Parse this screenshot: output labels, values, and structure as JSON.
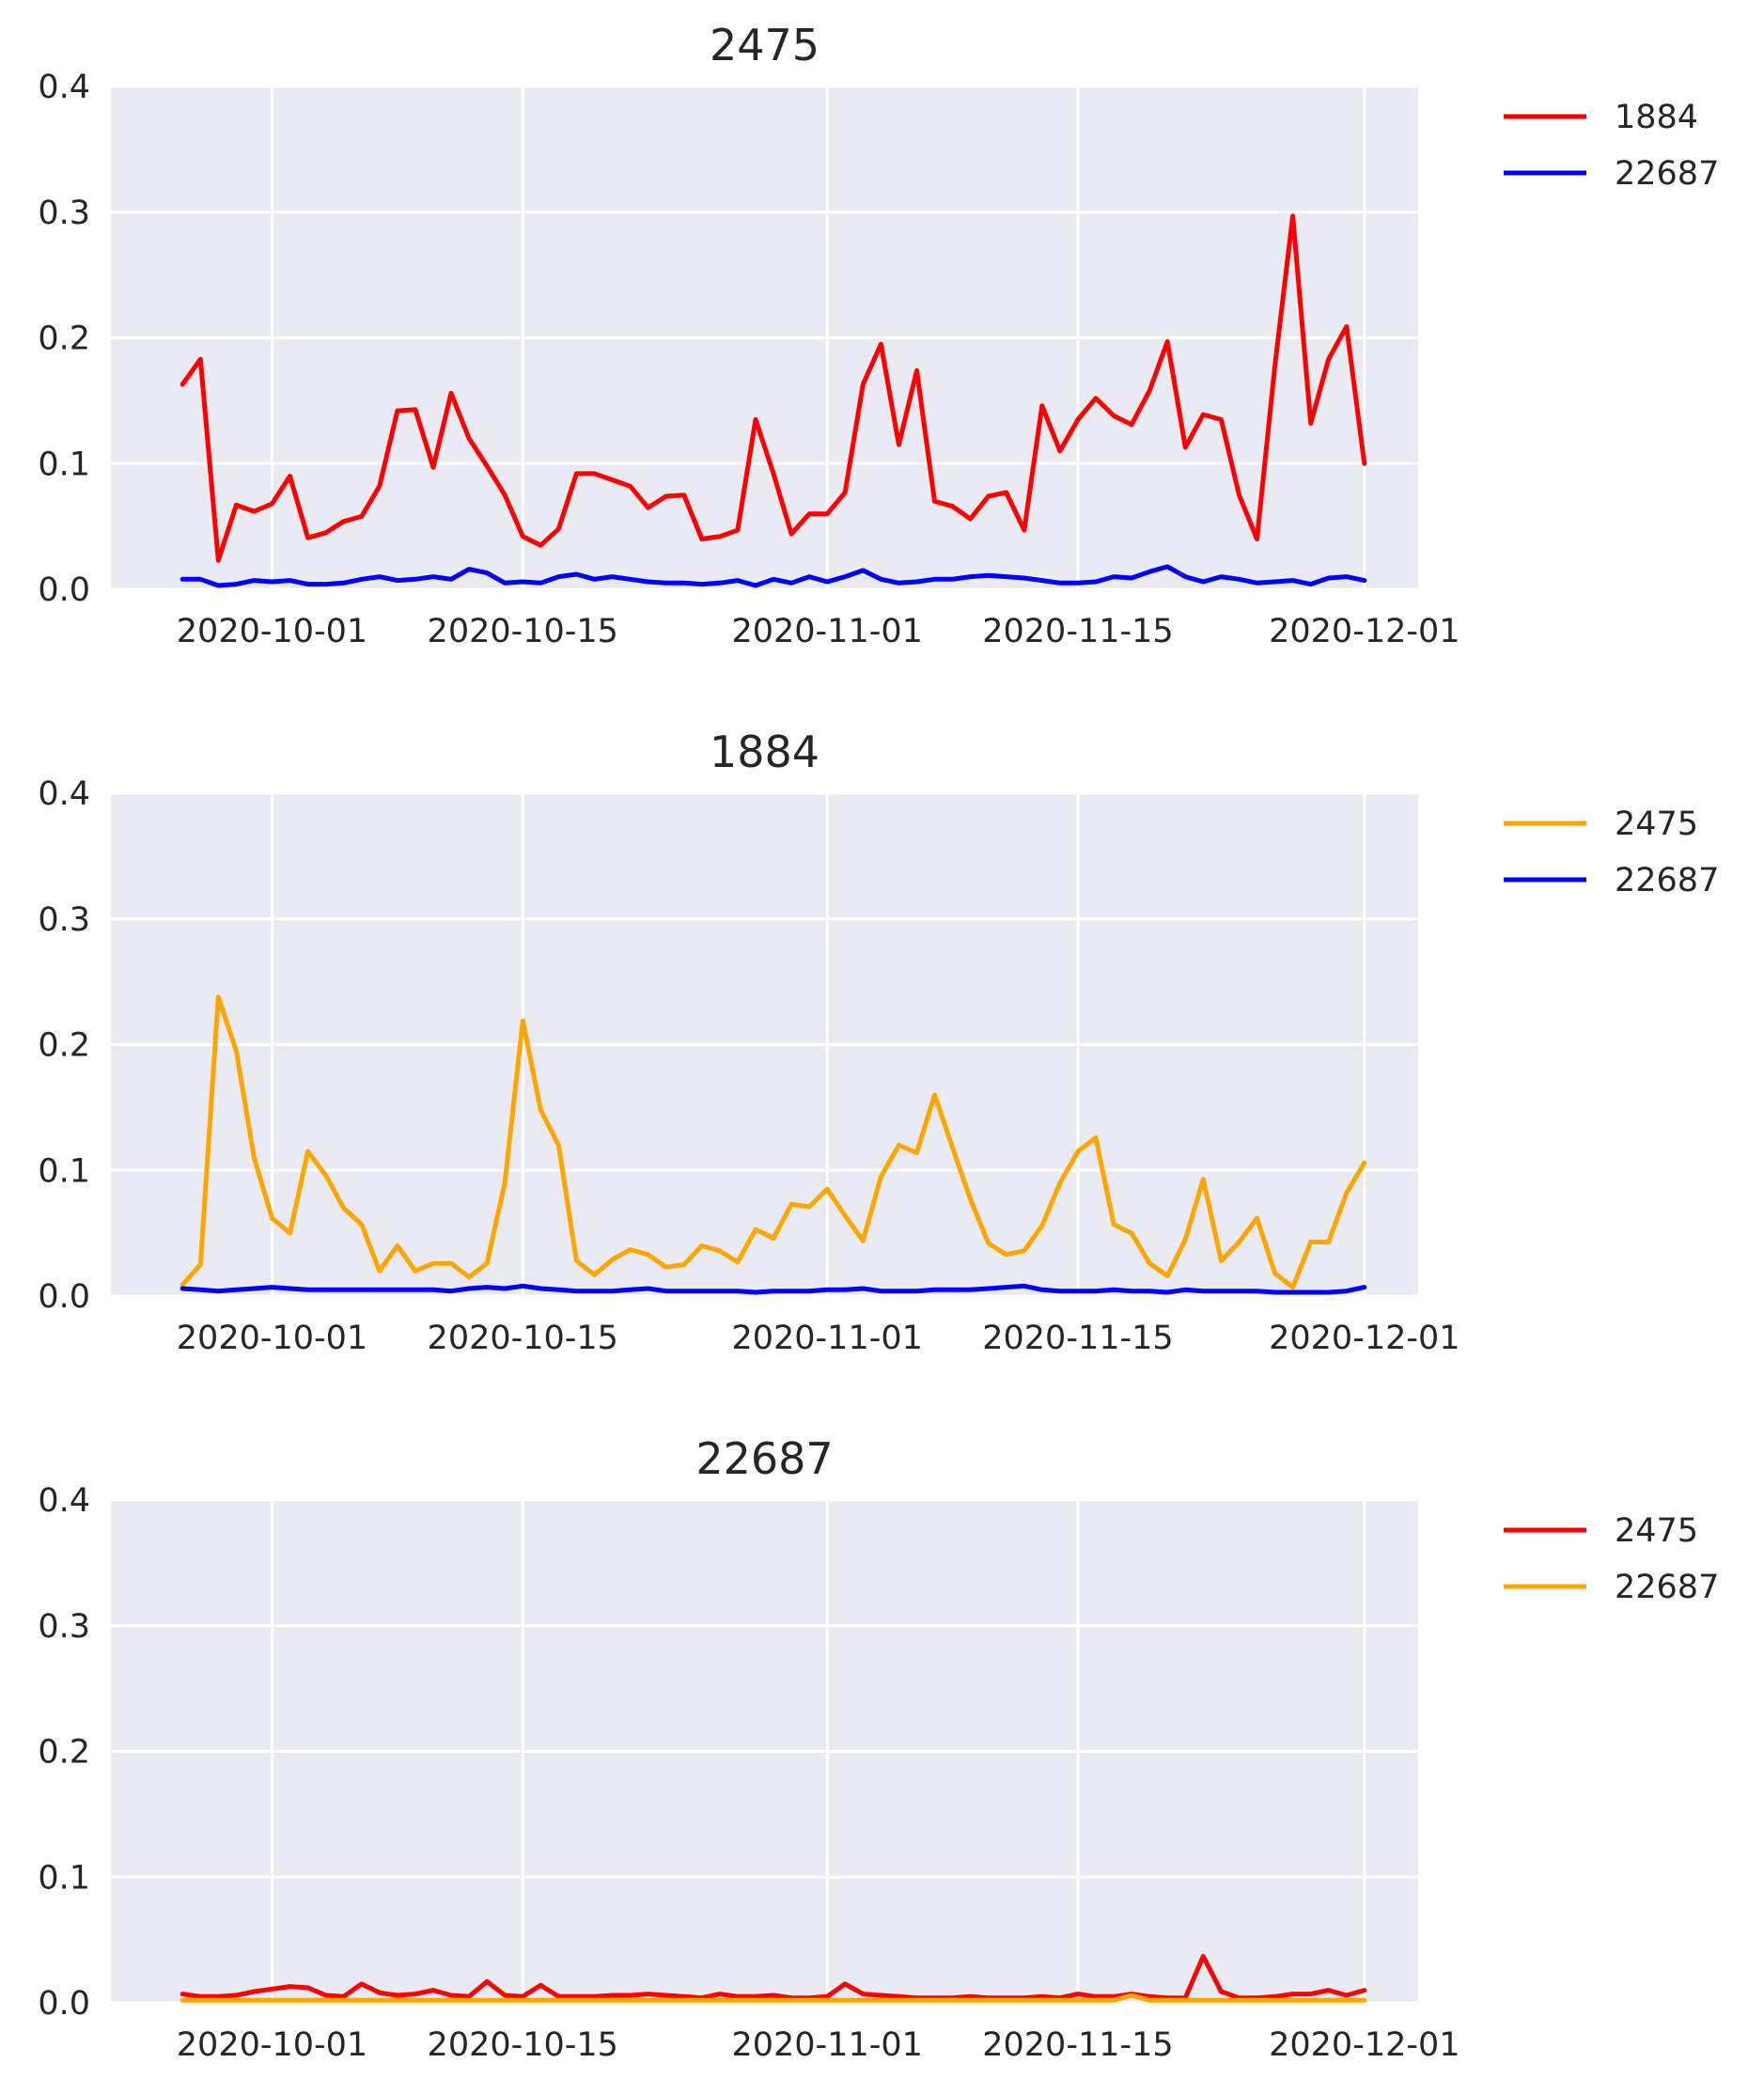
{
  "chart_data": [
    {
      "type": "line",
      "title": "2475",
      "ylim": [
        0,
        0.4
      ],
      "yticks": [
        "0.0",
        "0.1",
        "0.2",
        "0.3",
        "0.4"
      ],
      "xticks": [
        "2020-10-01",
        "2020-10-15",
        "2020-11-01",
        "2020-11-15",
        "2020-12-01"
      ],
      "xlim": [
        "2020-09-22",
        "2020-12-04"
      ],
      "grid": true,
      "legend_position": "outside-right-top",
      "x_start": "2020-09-26",
      "series": [
        {
          "name": "1884",
          "color": "#ff0000",
          "values": [
            0.163,
            0.183,
            0.023,
            0.067,
            0.062,
            0.068,
            0.09,
            0.041,
            0.045,
            0.054,
            0.058,
            0.082,
            0.142,
            0.143,
            0.097,
            0.156,
            0.12,
            0.098,
            0.075,
            0.042,
            0.035,
            0.048,
            0.092,
            0.092,
            0.087,
            0.082,
            0.065,
            0.074,
            0.075,
            0.04,
            0.042,
            0.047,
            0.135,
            0.092,
            0.044,
            0.06,
            0.06,
            0.077,
            0.163,
            0.195,
            0.115,
            0.174,
            0.07,
            0.066,
            0.056,
            0.074,
            0.077,
            0.047,
            0.146,
            0.11,
            0.135,
            0.152,
            0.138,
            0.131,
            0.158,
            0.197,
            0.113,
            0.139,
            0.135,
            0.075,
            0.04,
            0.178,
            0.297,
            0.132,
            0.183,
            0.209,
            0.1
          ]
        },
        {
          "name": "22687",
          "color": "#0000ff",
          "values": [
            0.008,
            0.008,
            0.003,
            0.004,
            0.007,
            0.006,
            0.007,
            0.004,
            0.004,
            0.005,
            0.008,
            0.01,
            0.007,
            0.008,
            0.01,
            0.008,
            0.016,
            0.013,
            0.005,
            0.006,
            0.005,
            0.01,
            0.012,
            0.008,
            0.01,
            0.008,
            0.006,
            0.005,
            0.005,
            0.004,
            0.005,
            0.007,
            0.003,
            0.008,
            0.005,
            0.01,
            0.006,
            0.01,
            0.015,
            0.008,
            0.005,
            0.006,
            0.008,
            0.008,
            0.01,
            0.011,
            0.01,
            0.009,
            0.007,
            0.005,
            0.005,
            0.006,
            0.01,
            0.009,
            0.014,
            0.018,
            0.01,
            0.006,
            0.01,
            0.008,
            0.005,
            0.006,
            0.007,
            0.004,
            0.009,
            0.01,
            0.007
          ]
        }
      ]
    },
    {
      "type": "line",
      "title": "1884",
      "ylim": [
        0,
        0.4
      ],
      "yticks": [
        "0.0",
        "0.1",
        "0.2",
        "0.3",
        "0.4"
      ],
      "xticks": [
        "2020-10-01",
        "2020-10-15",
        "2020-11-01",
        "2020-11-15",
        "2020-12-01"
      ],
      "xlim": [
        "2020-09-22",
        "2020-12-04"
      ],
      "grid": true,
      "legend_position": "outside-right-top",
      "x_start": "2020-09-26",
      "series": [
        {
          "name": "2475",
          "color": "#ffa500",
          "values": [
            0.009,
            0.025,
            0.238,
            0.195,
            0.11,
            0.062,
            0.05,
            0.115,
            0.096,
            0.07,
            0.057,
            0.02,
            0.04,
            0.02,
            0.026,
            0.026,
            0.015,
            0.026,
            0.09,
            0.219,
            0.148,
            0.12,
            0.028,
            0.017,
            0.029,
            0.037,
            0.033,
            0.023,
            0.025,
            0.04,
            0.036,
            0.027,
            0.053,
            0.046,
            0.073,
            0.071,
            0.085,
            0.064,
            0.044,
            0.095,
            0.12,
            0.114,
            0.16,
            0.118,
            0.077,
            0.042,
            0.033,
            0.036,
            0.056,
            0.09,
            0.115,
            0.126,
            0.057,
            0.05,
            0.026,
            0.016,
            0.045,
            0.093,
            0.028,
            0.043,
            0.062,
            0.018,
            0.007,
            0.043,
            0.043,
            0.082,
            0.106
          ]
        },
        {
          "name": "22687",
          "color": "#0000ff",
          "values": [
            0.006,
            0.005,
            0.004,
            0.005,
            0.006,
            0.007,
            0.006,
            0.005,
            0.005,
            0.005,
            0.005,
            0.005,
            0.005,
            0.005,
            0.005,
            0.004,
            0.006,
            0.007,
            0.006,
            0.008,
            0.006,
            0.005,
            0.004,
            0.004,
            0.004,
            0.005,
            0.006,
            0.004,
            0.004,
            0.004,
            0.004,
            0.004,
            0.003,
            0.004,
            0.004,
            0.004,
            0.005,
            0.005,
            0.006,
            0.004,
            0.004,
            0.004,
            0.005,
            0.005,
            0.005,
            0.006,
            0.007,
            0.008,
            0.005,
            0.004,
            0.004,
            0.004,
            0.005,
            0.004,
            0.004,
            0.003,
            0.005,
            0.004,
            0.004,
            0.004,
            0.004,
            0.003,
            0.003,
            0.003,
            0.003,
            0.004,
            0.007
          ]
        }
      ]
    },
    {
      "type": "line",
      "title": "22687",
      "ylim": [
        0,
        0.4
      ],
      "yticks": [
        "0.0",
        "0.1",
        "0.2",
        "0.3",
        "0.4"
      ],
      "xticks": [
        "2020-10-01",
        "2020-10-15",
        "2020-11-01",
        "2020-11-15",
        "2020-12-01"
      ],
      "xlim": [
        "2020-09-22",
        "2020-12-04"
      ],
      "grid": true,
      "legend_position": "outside-right-top",
      "x_start": "2020-09-26",
      "series": [
        {
          "name": "2475",
          "color": "#ff0000",
          "values": [
            0.007,
            0.005,
            0.005,
            0.006,
            0.009,
            0.011,
            0.013,
            0.012,
            0.006,
            0.005,
            0.015,
            0.008,
            0.006,
            0.007,
            0.01,
            0.006,
            0.005,
            0.017,
            0.006,
            0.005,
            0.014,
            0.005,
            0.005,
            0.005,
            0.006,
            0.006,
            0.007,
            0.006,
            0.005,
            0.004,
            0.007,
            0.005,
            0.005,
            0.006,
            0.004,
            0.004,
            0.005,
            0.015,
            0.007,
            0.006,
            0.005,
            0.004,
            0.004,
            0.004,
            0.005,
            0.004,
            0.004,
            0.004,
            0.005,
            0.004,
            0.007,
            0.005,
            0.005,
            0.007,
            0.005,
            0.004,
            0.004,
            0.037,
            0.009,
            0.004,
            0.004,
            0.005,
            0.007,
            0.007,
            0.01,
            0.006,
            0.01
          ]
        },
        {
          "name": "22687",
          "color": "#ffa500",
          "values": [
            0.002,
            0.002,
            0.002,
            0.002,
            0.002,
            0.002,
            0.002,
            0.002,
            0.002,
            0.002,
            0.002,
            0.002,
            0.002,
            0.002,
            0.002,
            0.002,
            0.002,
            0.002,
            0.002,
            0.002,
            0.002,
            0.002,
            0.002,
            0.002,
            0.002,
            0.002,
            0.002,
            0.002,
            0.002,
            0.002,
            0.002,
            0.002,
            0.002,
            0.002,
            0.002,
            0.002,
            0.002,
            0.002,
            0.002,
            0.002,
            0.002,
            0.002,
            0.002,
            0.002,
            0.002,
            0.002,
            0.002,
            0.002,
            0.002,
            0.002,
            0.002,
            0.002,
            0.002,
            0.006,
            0.002,
            0.002,
            0.002,
            0.002,
            0.002,
            0.002,
            0.002,
            0.002,
            0.002,
            0.002,
            0.002,
            0.002,
            0.002
          ]
        }
      ]
    }
  ]
}
